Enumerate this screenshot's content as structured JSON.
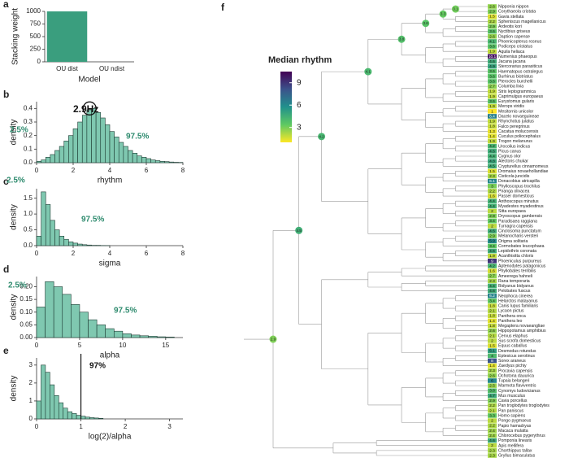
{
  "chart_data": [
    {
      "type": "bar",
      "panel": "a",
      "ylabel": "Stacking weight",
      "xlabel": "Model",
      "categories": [
        "OU dist",
        "OU ndist"
      ],
      "values": [
        1000,
        0
      ],
      "color": "#3a9e7e",
      "ylim": [
        0,
        1000
      ],
      "yticks": [
        0,
        250,
        500,
        750,
        1000
      ]
    },
    {
      "type": "histogram",
      "panel": "b",
      "ylabel": "density",
      "xlabel": "rhythm",
      "color": "#7fc8b0",
      "bins": [
        0,
        0.25,
        0.5,
        0.75,
        1,
        1.25,
        1.5,
        1.75,
        2,
        2.25,
        2.5,
        2.75,
        3,
        3.25,
        3.5,
        3.75,
        4,
        4.25,
        4.5,
        4.75,
        5,
        5.25,
        5.5,
        5.75,
        6,
        6.25,
        6.5,
        6.75,
        7,
        7.25,
        7.5,
        7.75,
        8
      ],
      "counts": [
        0.01,
        0.02,
        0.04,
        0.06,
        0.09,
        0.12,
        0.16,
        0.2,
        0.25,
        0.3,
        0.35,
        0.39,
        0.4,
        0.37,
        0.33,
        0.28,
        0.23,
        0.19,
        0.15,
        0.12,
        0.09,
        0.07,
        0.05,
        0.04,
        0.03,
        0.02,
        0.015,
        0.01,
        0.008,
        0.005,
        0.003,
        0.002
      ],
      "xlim": [
        0,
        8
      ],
      "xticks": [
        0,
        2,
        4,
        6,
        8
      ],
      "ylim": [
        0,
        0.45
      ],
      "yticks": [
        {
          "value": 0,
          "label": "0.0"
        },
        0.1,
        0.2,
        0.3,
        0.4
      ],
      "highlight": [
        2.9,
        0.4
      ],
      "annotations": [
        {
          "text": "2.9Hz"
        },
        {
          "text": "2.5%"
        },
        {
          "text": "97.5%"
        }
      ]
    },
    {
      "type": "histogram",
      "panel": "c",
      "ylabel": "density",
      "xlabel": "sigma",
      "color": "#7fc8b0",
      "bins": [
        0,
        0.25,
        0.5,
        0.75,
        1,
        1.25,
        1.5,
        1.75,
        2,
        2.25,
        2.5,
        2.75,
        3,
        3.25,
        3.5,
        3.75,
        4
      ],
      "counts": [
        0.3,
        1.7,
        1.3,
        0.8,
        0.5,
        0.3,
        0.2,
        0.12,
        0.08,
        0.05,
        0.03,
        0.02,
        0.01,
        0.01,
        0.005,
        0.003
      ],
      "xlim": [
        0,
        8
      ],
      "xticks": [
        0,
        2,
        4,
        6,
        8
      ],
      "ylim": [
        0,
        1.8
      ],
      "yticks": [
        {
          "value": 0,
          "label": "0.0"
        },
        0.5,
        {
          "value": 1,
          "label": "1.0"
        },
        1.5
      ],
      "annotations": [
        {
          "text": "2.5%"
        },
        {
          "text": "97.5%"
        }
      ]
    },
    {
      "type": "histogram",
      "panel": "d",
      "ylabel": "density",
      "xlabel": "alpha",
      "color": "#7fc8b0",
      "bins": [
        0,
        1,
        2,
        3,
        4,
        5,
        6,
        7,
        8,
        9,
        10,
        11,
        12,
        13,
        14,
        15,
        16
      ],
      "counts": [
        0.12,
        0.22,
        0.2,
        0.17,
        0.13,
        0.1,
        0.07,
        0.05,
        0.035,
        0.025,
        0.015,
        0.01,
        0.007,
        0.005,
        0.003,
        0.002
      ],
      "xlim": [
        0,
        17
      ],
      "xticks": [
        0,
        5,
        10,
        15
      ],
      "ylim": [
        0,
        0.24
      ],
      "yticks": [
        {
          "value": 0,
          "label": "0.00"
        },
        0.05,
        {
          "value": 0.1,
          "label": "0.10"
        },
        0.15,
        {
          "value": 0.2,
          "label": "0.20"
        }
      ],
      "annotations": [
        {
          "text": "2.5%"
        },
        {
          "text": "97.5%"
        }
      ]
    },
    {
      "type": "histogram",
      "panel": "e",
      "ylabel": "density",
      "xlabel": "log(2)/alpha",
      "color": "#7fc8b0",
      "bins": [
        0,
        0.1,
        0.2,
        0.3,
        0.4,
        0.5,
        0.6,
        0.7,
        0.8,
        0.9,
        1,
        1.1,
        1.2,
        1.3,
        1.4,
        1.5
      ],
      "counts": [
        1,
        3,
        2.6,
        1.9,
        1.3,
        0.9,
        0.6,
        0.4,
        0.3,
        0.2,
        0.15,
        0.1,
        0.07,
        0.05,
        0.03
      ],
      "xlim": [
        0,
        3.3
      ],
      "xticks": [
        0,
        1,
        2,
        3
      ],
      "ylim": [
        0,
        3.4
      ],
      "yticks": [
        0,
        1,
        2,
        3
      ],
      "vline": 1,
      "annotations": [
        {
          "text": "97%"
        }
      ]
    },
    {
      "type": "tree",
      "panel": "f",
      "legend_title": "Median rhythm",
      "clim": [
        1,
        10.5
      ],
      "cticks": [
        3,
        6,
        9
      ],
      "colormap": [
        "#fde725",
        "#5ec962",
        "#21918c",
        "#3b528b",
        "#440154"
      ],
      "internal_nodes": [
        2.9,
        4.5,
        4.2,
        4.1,
        3.8,
        3.6,
        3.3,
        3.1
      ],
      "leaves": [
        {
          "name": "Nipponia nippon",
          "value": 2.6
        },
        {
          "name": "Corythaeola cristata",
          "value": 2.9
        },
        {
          "name": "Gavia stellata",
          "value": 1.5
        },
        {
          "name": "Spheniscus magellanicus",
          "value": 2.2
        },
        {
          "name": "Ardeotis kori",
          "value": 2.9
        },
        {
          "name": "Nyctibius griseus",
          "value": 3.6
        },
        {
          "name": "Daption capense",
          "value": 2.6
        },
        {
          "name": "Phoenicopterus roseus",
          "value": 4.1
        },
        {
          "name": "Podiceps cristatus",
          "value": 3.6
        },
        {
          "name": "Aquila heliaca",
          "value": 1.9
        },
        {
          "name": "Numenius phaeopus",
          "value": 10.1
        },
        {
          "name": "Jacana jacana",
          "value": 4.6
        },
        {
          "name": "Stercorarius parasiticus",
          "value": 4.9
        },
        {
          "name": "Haematopus ostralegus",
          "value": 3.6
        },
        {
          "name": "Burhinus bistriatus",
          "value": 3.6
        },
        {
          "name": "Pterocles burchelli",
          "value": 3.6
        },
        {
          "name": "Columba livia",
          "value": 2.7
        },
        {
          "name": "Strix leptogrammica",
          "value": 1.9
        },
        {
          "name": "Caprimulgus europaeus",
          "value": 1.9
        },
        {
          "name": "Eurystomus gularis",
          "value": 3.6
        },
        {
          "name": "Merops viridis",
          "value": 1.9
        },
        {
          "name": "Mesitornis unicolor",
          "value": 1
        },
        {
          "name": "Dacelo novaeguineae",
          "value": 6.4
        },
        {
          "name": "Rhynchotus julatus",
          "value": 1.9
        },
        {
          "name": "Falco peregrinus",
          "value": 1.8
        },
        {
          "name": "Cacatua moluccensis",
          "value": 1.3
        },
        {
          "name": "Cuculus poliocephalus",
          "value": 1.4
        },
        {
          "name": "Trogon melanurus",
          "value": 1.9
        },
        {
          "name": "Urocolius indicus",
          "value": 4.2
        },
        {
          "name": "Picus canus",
          "value": 4.6
        },
        {
          "name": "Cygnus olor",
          "value": 4.4
        },
        {
          "name": "Alectoris chukar",
          "value": 4.8
        },
        {
          "name": "Crypturellus cinnamomeus",
          "value": 4.5
        },
        {
          "name": "Dromaius novaehollandiae",
          "value": 1.5
        },
        {
          "name": "Cisticola juncidis",
          "value": 2.3
        },
        {
          "name": "Donacobius atricapilla",
          "value": 6.1
        },
        {
          "name": "Phylloscopus trochilus",
          "value": 3
        },
        {
          "name": "Piranga olivacea",
          "value": 2.2
        },
        {
          "name": "Passer domesticus",
          "value": 1.6
        },
        {
          "name": "Anthoscopus minutus",
          "value": 4.4
        },
        {
          "name": "Myadestes myadestinus",
          "value": 4.4
        },
        {
          "name": "Sitta europaea",
          "value": 2
        },
        {
          "name": "Dryoscopus gambensis",
          "value": 2.9
        },
        {
          "name": "Paradisaea raggiana",
          "value": 3.4
        },
        {
          "name": "Turnagra capensis",
          "value": 2
        },
        {
          "name": "Cinclosoma punctatum",
          "value": 4.6
        },
        {
          "name": "Melanocharis versteri",
          "value": 2.9
        },
        {
          "name": "Origma solitaria",
          "value": 5.9
        },
        {
          "name": "Cormobates leucophaea",
          "value": 3.4
        },
        {
          "name": "Lepidothrix coronata",
          "value": 4.6
        },
        {
          "name": "Acanthisitta chloris",
          "value": 1.9
        },
        {
          "name": "Phoeniculus purpureus",
          "value": 9
        },
        {
          "name": "Aptenodytes patagonicus",
          "value": 4.2
        },
        {
          "name": "Phyllobates terribilis",
          "value": 1.6
        },
        {
          "name": "Ameerega hahneli",
          "value": 2.7
        },
        {
          "name": "Rana temporaria",
          "value": 2.3
        },
        {
          "name": "Bidyanus bidyanus",
          "value": 4.4
        },
        {
          "name": "Pelobates fuscus",
          "value": 4.6
        },
        {
          "name": "Neophoca cinerea",
          "value": 6.2
        },
        {
          "name": "Helarctos malayanus",
          "value": 3.4
        },
        {
          "name": "Canis lupus familiaris",
          "value": 1.8
        },
        {
          "name": "Lycaon pictus",
          "value": 2.1
        },
        {
          "name": "Panthera onca",
          "value": 1.8
        },
        {
          "name": "Panthera leo",
          "value": 1.4
        },
        {
          "name": "Megaptera novaeangliae",
          "value": 1.8
        },
        {
          "name": "Hippopotamus amphibius",
          "value": 2.6
        },
        {
          "name": "Cervus elaphus",
          "value": 2.1
        },
        {
          "name": "Sus scrofa domesticus",
          "value": 2
        },
        {
          "name": "Equus caballus",
          "value": 1.5
        },
        {
          "name": "Desmodus rotundus",
          "value": 5.1
        },
        {
          "name": "Eptesicus serotinus",
          "value": 4
        },
        {
          "name": "Sorex araneus",
          "value": 8
        },
        {
          "name": "Zaedyus pichiy",
          "value": 1.4
        },
        {
          "name": "Procavia capensis",
          "value": 2.3
        },
        {
          "name": "Ochotona dauurica",
          "value": 2.6
        },
        {
          "name": "Tupaia belangeri",
          "value": 6
        },
        {
          "name": "Marmota flaviventris",
          "value": 2.5
        },
        {
          "name": "Cynomys ludovicianus",
          "value": 3.8
        },
        {
          "name": "Mus musculus",
          "value": 4.7
        },
        {
          "name": "Cavia porcellus",
          "value": 2.9
        },
        {
          "name": "Pan troglodytes troglodytes",
          "value": 2.2
        },
        {
          "name": "Pan paniscus",
          "value": 2.1
        },
        {
          "name": "Homo sapiens",
          "value": 3.3
        },
        {
          "name": "Pongo pygmaeus",
          "value": 2
        },
        {
          "name": "Papio hamadryas",
          "value": 2.2
        },
        {
          "name": "Macaca mulatta",
          "value": 2.4
        },
        {
          "name": "Chlorocebus pygerythrus",
          "value": 2.4
        },
        {
          "name": "Pomponia linearis",
          "value": 4.6
        },
        {
          "name": "Apis mellifera",
          "value": 2
        },
        {
          "name": "Chorthippus tallax",
          "value": 2.3
        },
        {
          "name": "Gryllus bimaculatus",
          "value": 2.3
        }
      ]
    }
  ]
}
